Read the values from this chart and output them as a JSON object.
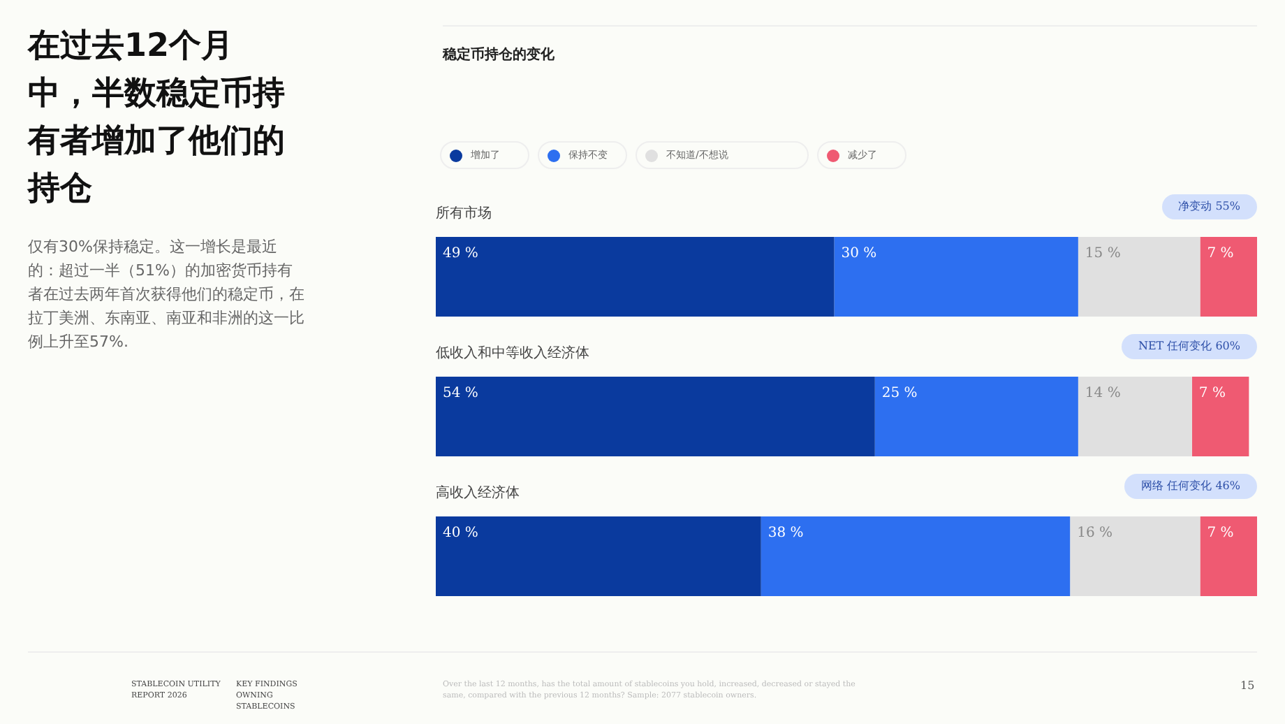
{
  "chart_data": {
    "type": "bar",
    "orientation": "horizontal",
    "stacked": true,
    "title": "在过去12个月中，半数稳定币持有者增加了他们的持仓",
    "subtitle": "稳定币持仓的变化",
    "categories": [
      "所有市场",
      "低收入和中等收入经济体",
      "高收入经济体"
    ],
    "series": [
      {
        "name": "增加了",
        "color": "#0a3a9e",
        "values": [
          49,
          54,
          40
        ],
        "value_labels": [
          "49 %",
          "54 %",
          "40 %"
        ]
      },
      {
        "name": "保持不变",
        "color": "#2d6ff0",
        "values": [
          30,
          25,
          38
        ],
        "value_labels": [
          "30 %",
          "25 %",
          "38 %"
        ]
      },
      {
        "name": "不知道/不想说",
        "color": "#e0e0e0",
        "values": [
          15,
          14,
          16
        ],
        "value_labels": [
          "15 %",
          "14 %",
          "16 %"
        ]
      },
      {
        "name": "减少了",
        "color": "#ef5a72",
        "values": [
          7,
          7,
          7
        ],
        "value_labels": [
          "7 %",
          "7 %",
          "7 %"
        ]
      }
    ],
    "legend": "top",
    "annotations": [
      "净变动 55%",
      "NET 任何变化 60%",
      "网络 任何变化 46%",
      "仅有30%保持稳定。这一增长是最近的：超过一半（51%）的加密货币持有者在过去两年首次获得他们的稳定币，在拉丁美洲、东南亚、南亚和非洲的这一比例上升至57%.",
      "STABLECOIN UTILITY REPORT 2026",
      "KEY FINDINGS OWNING STABLECOINS",
      "Over the last 12 months, has the total amount of stablecoins you hold, increased, decreased or stayed the same, compared with the previous 12 months? Sample: 2077 stablecoin owners.",
      "15"
    ]
  }
}
